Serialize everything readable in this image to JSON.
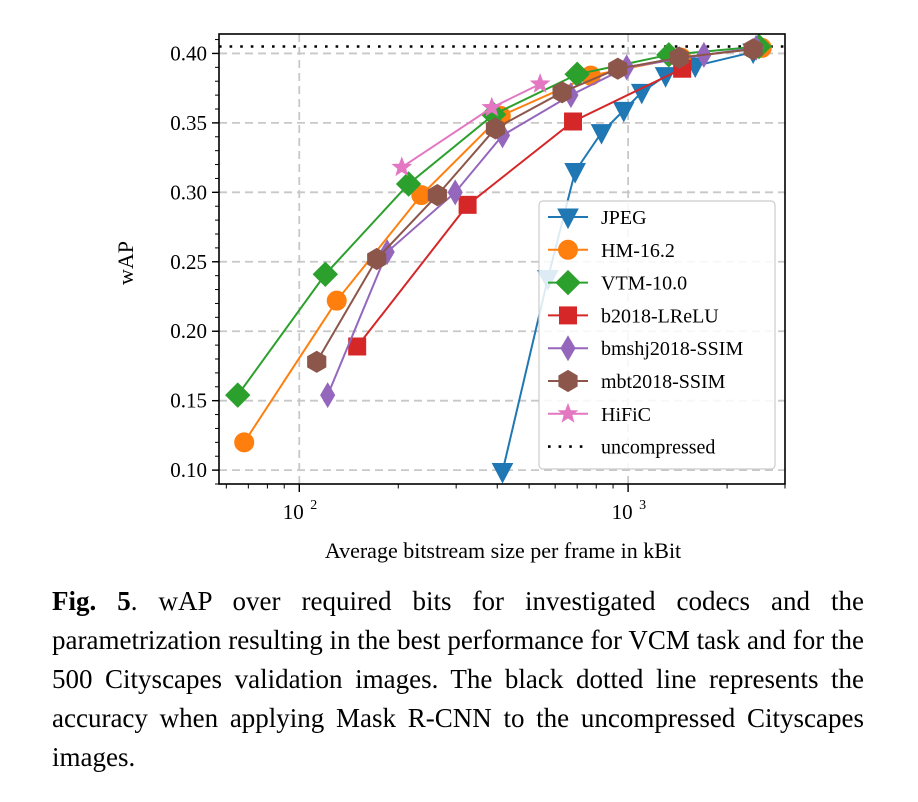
{
  "chart_data": {
    "type": "line",
    "x_scale": "log",
    "xlabel": "Average bitstream size per frame in kBit",
    "ylabel": "wAP",
    "xlim": [
      57,
      3000
    ],
    "ylim": [
      0.09,
      0.414
    ],
    "grid": true,
    "legend_position": "lower-right",
    "x_ticks": [
      {
        "value": 100,
        "base": "10",
        "exp": "2"
      },
      {
        "value": 1000,
        "base": "10",
        "exp": "3"
      }
    ],
    "y_ticks": [
      {
        "value": 0.1,
        "label": "0.10"
      },
      {
        "value": 0.15,
        "label": "0.15"
      },
      {
        "value": 0.2,
        "label": "0.20"
      },
      {
        "value": 0.25,
        "label": "0.25"
      },
      {
        "value": 0.3,
        "label": "0.30"
      },
      {
        "value": 0.35,
        "label": "0.35"
      },
      {
        "value": 0.4,
        "label": "0.40"
      }
    ],
    "reference_line": {
      "name": "uncompressed",
      "y": 0.405,
      "color": "#000000"
    },
    "series": [
      {
        "name": "JPEG",
        "color": "#1f77b4",
        "marker": "triangle-down",
        "x": [
          415,
          570,
          690,
          830,
          970,
          1100,
          1300,
          1600,
          2400
        ],
        "y": [
          0.099,
          0.238,
          0.315,
          0.343,
          0.359,
          0.372,
          0.384,
          0.391,
          0.401
        ]
      },
      {
        "name": "HM-16.2",
        "color": "#ff7f0e",
        "marker": "circle",
        "x": [
          68,
          130,
          235,
          410,
          770,
          1450,
          2550
        ],
        "y": [
          0.12,
          0.222,
          0.298,
          0.355,
          0.384,
          0.397,
          0.404
        ]
      },
      {
        "name": "VTM-10.0",
        "color": "#2ca02c",
        "marker": "diamond",
        "x": [
          65,
          120,
          215,
          390,
          700,
          1330,
          2500
        ],
        "y": [
          0.154,
          0.241,
          0.306,
          0.356,
          0.385,
          0.399,
          0.405
        ]
      },
      {
        "name": "b2018-LReLU",
        "color": "#d62728",
        "marker": "square",
        "x": [
          150,
          325,
          680,
          1460
        ],
        "y": [
          0.189,
          0.291,
          0.351,
          0.389
        ]
      },
      {
        "name": "bmshj2018-SSIM",
        "color": "#9467bd",
        "marker": "thin-diamond",
        "x": [
          122,
          185,
          298,
          415,
          670,
          990,
          1700,
          2450
        ],
        "y": [
          0.154,
          0.257,
          0.3,
          0.341,
          0.37,
          0.39,
          0.399,
          0.404
        ]
      },
      {
        "name": "mbt2018-SSIM",
        "color": "#8c564b",
        "marker": "hexagon",
        "x": [
          113,
          172,
          263,
          395,
          630,
          930,
          1430,
          2400
        ],
        "y": [
          0.178,
          0.252,
          0.298,
          0.346,
          0.372,
          0.389,
          0.397,
          0.403
        ]
      },
      {
        "name": "HiFiC",
        "color": "#e377c2",
        "marker": "star",
        "x": [
          205,
          385,
          540
        ],
        "y": [
          0.318,
          0.361,
          0.378
        ]
      }
    ]
  },
  "legend": {
    "entries": [
      {
        "label": "JPEG",
        "color": "#1f77b4",
        "marker": "triangle-down"
      },
      {
        "label": "HM-16.2",
        "color": "#ff7f0e",
        "marker": "circle"
      },
      {
        "label": "VTM-10.0",
        "color": "#2ca02c",
        "marker": "diamond"
      },
      {
        "label": "b2018-LReLU",
        "color": "#d62728",
        "marker": "square"
      },
      {
        "label": "bmshj2018-SSIM",
        "color": "#9467bd",
        "marker": "thin-diamond"
      },
      {
        "label": "mbt2018-SSIM",
        "color": "#8c564b",
        "marker": "hexagon"
      },
      {
        "label": "HiFiC",
        "color": "#e377c2",
        "marker": "star"
      },
      {
        "label": "uncompressed",
        "color": "#000000",
        "marker": "dotted-line"
      }
    ]
  },
  "caption": {
    "label": "Fig. 5",
    "text": ". wAP over required bits for investigated codecs and the parametrization resulting in the best performance for VCM task and for the 500 Cityscapes validation images. The black dotted line represents the accuracy when applying Mask R-CNN to the uncompressed Cityscapes images."
  }
}
